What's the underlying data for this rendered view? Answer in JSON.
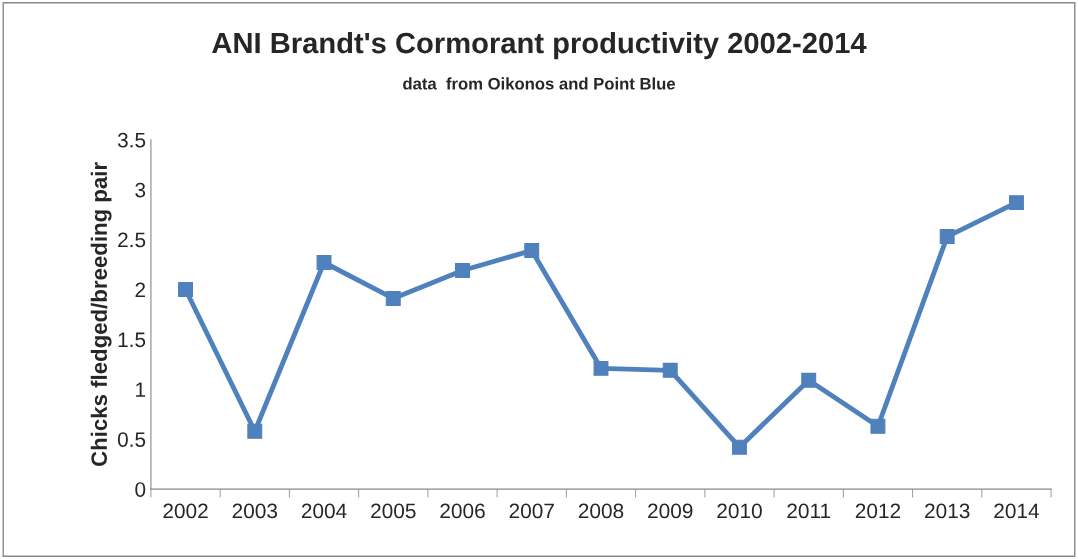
{
  "chart_data": {
    "type": "line",
    "title": "ANI Brandt's Cormorant productivity 2002-2014",
    "subtitle": "data  from Oikonos and Point Blue",
    "ylabel": "Chicks fledged/breeding pair",
    "categories": [
      "2002",
      "2003",
      "2004",
      "2005",
      "2006",
      "2007",
      "2008",
      "2009",
      "2010",
      "2011",
      "2012",
      "2013",
      "2014"
    ],
    "series": [
      {
        "color": "#4f81bd",
        "values": [
          2.0,
          0.58,
          2.27,
          1.91,
          2.19,
          2.39,
          1.21,
          1.19,
          0.42,
          1.09,
          0.63,
          2.53,
          2.87
        ]
      }
    ],
    "ylim": [
      0,
      3.5
    ],
    "yticks": [
      0,
      0.5,
      1,
      1.5,
      2,
      2.5,
      3,
      3.5
    ],
    "grid": false,
    "legend": false,
    "marker": "square",
    "line_style": "solid"
  }
}
